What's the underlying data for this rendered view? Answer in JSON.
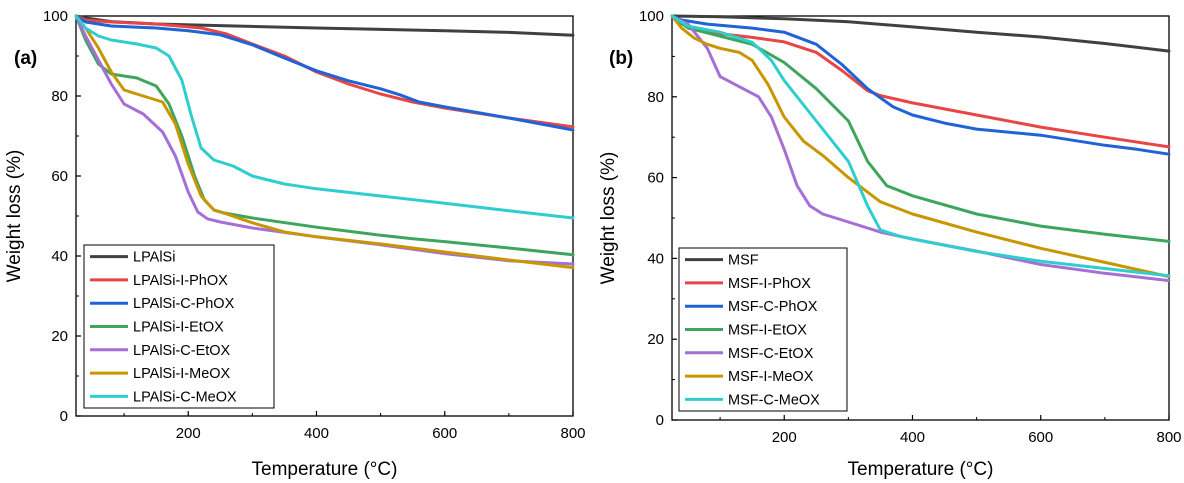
{
  "chart_data": [
    {
      "type": "line",
      "panel_label": "(a)",
      "xlabel": "Temperature (°C)",
      "ylabel": "Weight loss (%)",
      "xlim": [
        25,
        800
      ],
      "ylim": [
        0,
        100
      ],
      "xticks": [
        200,
        400,
        600,
        800
      ],
      "yticks": [
        0,
        20,
        40,
        60,
        80,
        100
      ],
      "grid": false,
      "legend_position": "bottom-left",
      "series": [
        {
          "name": "LPAlSi",
          "color": "#404040",
          "x": [
            25,
            40,
            80,
            150,
            250,
            400,
            600,
            700,
            800
          ],
          "y": [
            100,
            99.5,
            98.6,
            98.0,
            97.6,
            97.0,
            96.3,
            95.9,
            95.2
          ]
        },
        {
          "name": "LPAlSi-I-PhOX",
          "color": "#e84545",
          "x": [
            25,
            40,
            80,
            150,
            220,
            260,
            300,
            350,
            400,
            450,
            500,
            550,
            600,
            700,
            800
          ],
          "y": [
            100,
            99,
            98.5,
            98,
            97,
            95.5,
            93,
            90,
            86,
            83,
            80.5,
            78.5,
            77,
            74.5,
            72.3
          ]
        },
        {
          "name": "LPAlSi-C-PhOX",
          "color": "#1f63d6",
          "x": [
            25,
            40,
            80,
            150,
            200,
            250,
            300,
            350,
            400,
            450,
            500,
            530,
            560,
            600,
            700,
            800
          ],
          "y": [
            100,
            98.5,
            97.5,
            97,
            96.3,
            95.3,
            92.8,
            89.5,
            86.3,
            83.8,
            81.8,
            80.3,
            78.5,
            77.3,
            74.5,
            71.5
          ]
        },
        {
          "name": "LPAlSi-I-EtOX",
          "color": "#3ea55c",
          "x": [
            25,
            40,
            60,
            80,
            120,
            150,
            170,
            190,
            210,
            225,
            240,
            255,
            300,
            400,
            500,
            550,
            600,
            700,
            800
          ],
          "y": [
            100,
            94,
            88,
            85.5,
            84.5,
            82.5,
            78,
            70,
            60,
            54,
            51.5,
            50.8,
            49.5,
            47.2,
            45.2,
            44.3,
            43.6,
            42,
            40.3
          ]
        },
        {
          "name": "LPAlSi-C-EtOX",
          "color": "#a56fd6",
          "x": [
            25,
            40,
            60,
            80,
            100,
            130,
            160,
            180,
            200,
            215,
            230,
            250,
            300,
            400,
            500,
            600,
            700,
            800
          ],
          "y": [
            100,
            95,
            89,
            83,
            78,
            75.5,
            71,
            65,
            56,
            51,
            49.3,
            48.5,
            47,
            44.8,
            42.8,
            40.6,
            38.8,
            38
          ]
        },
        {
          "name": "LPAlSi-I-MeOX",
          "color": "#c79600",
          "x": [
            25,
            40,
            60,
            80,
            100,
            130,
            160,
            180,
            200,
            220,
            240,
            260,
            300,
            350,
            400,
            500,
            600,
            700,
            800
          ],
          "y": [
            100,
            97,
            92,
            86,
            81.5,
            80,
            78.5,
            73,
            63,
            55,
            51.5,
            50.5,
            48.3,
            46,
            44.8,
            43,
            41,
            39,
            37.1
          ]
        },
        {
          "name": "LPAlSi-C-MeOX",
          "color": "#2fcdcd",
          "x": [
            25,
            40,
            60,
            80,
            120,
            150,
            170,
            190,
            205,
            220,
            240,
            270,
            300,
            350,
            400,
            500,
            600,
            700,
            800
          ],
          "y": [
            100,
            97,
            95,
            94,
            93,
            92,
            90,
            84,
            75,
            67,
            64,
            62.5,
            60,
            58,
            56.8,
            55,
            53.2,
            51.3,
            49.5
          ]
        }
      ]
    },
    {
      "type": "line",
      "panel_label": "(b)",
      "xlabel": "Temperature (°C)",
      "ylabel": "Weight loss (%)",
      "xlim": [
        25,
        800
      ],
      "ylim": [
        0,
        100
      ],
      "xticks": [
        200,
        400,
        600,
        800
      ],
      "yticks": [
        0,
        20,
        40,
        60,
        80,
        100
      ],
      "grid": false,
      "legend_position": "bottom-left",
      "series": [
        {
          "name": "MSF",
          "color": "#404040",
          "x": [
            25,
            100,
            200,
            300,
            400,
            500,
            600,
            700,
            800
          ],
          "y": [
            100,
            99.8,
            99.3,
            98.6,
            97.3,
            96,
            94.8,
            93.2,
            91.3
          ]
        },
        {
          "name": "MSF-I-PhOX",
          "color": "#e84545",
          "x": [
            25,
            40,
            80,
            150,
            200,
            250,
            290,
            310,
            330,
            350,
            400,
            500,
            600,
            700,
            800
          ],
          "y": [
            100,
            98,
            96,
            94.7,
            93.6,
            91,
            86.5,
            84,
            81.5,
            80.3,
            78.5,
            75.5,
            72.5,
            70,
            67.6
          ]
        },
        {
          "name": "MSF-C-PhOX",
          "color": "#1f63d6",
          "x": [
            25,
            40,
            80,
            150,
            200,
            250,
            290,
            330,
            370,
            400,
            450,
            500,
            600,
            700,
            750,
            800
          ],
          "y": [
            100,
            99,
            98,
            97,
            96,
            93,
            88,
            82,
            77.5,
            75.5,
            73.5,
            72,
            70.5,
            68,
            67,
            65.8
          ]
        },
        {
          "name": "MSF-I-EtOX",
          "color": "#3ea55c",
          "x": [
            25,
            50,
            100,
            150,
            200,
            250,
            300,
            330,
            360,
            400,
            500,
            600,
            700,
            800
          ],
          "y": [
            100,
            97,
            95,
            93,
            88.5,
            82,
            74,
            64,
            58,
            55.5,
            51,
            48,
            46,
            44.2
          ]
        },
        {
          "name": "MSF-C-EtOX",
          "color": "#a56fd6",
          "x": [
            25,
            50,
            80,
            100,
            130,
            160,
            180,
            200,
            220,
            240,
            260,
            300,
            350,
            400,
            500,
            600,
            700,
            800
          ],
          "y": [
            100,
            98,
            92,
            85,
            82.5,
            80,
            75,
            67,
            58,
            53,
            51,
            49,
            46.5,
            44.8,
            41.8,
            38.5,
            36.3,
            34.5
          ]
        },
        {
          "name": "MSF-I-MeOX",
          "color": "#c79600",
          "x": [
            25,
            40,
            60,
            80,
            100,
            130,
            150,
            175,
            200,
            230,
            260,
            300,
            350,
            400,
            500,
            600,
            700,
            800
          ],
          "y": [
            100,
            97,
            94.5,
            93,
            92,
            91,
            89,
            83,
            75,
            69,
            65.5,
            60,
            54,
            51,
            46.5,
            42.5,
            39,
            35.5
          ]
        },
        {
          "name": "MSF-C-MeOX",
          "color": "#2fcdcd",
          "x": [
            25,
            50,
            100,
            150,
            180,
            200,
            250,
            300,
            330,
            350,
            380,
            400,
            500,
            600,
            700,
            800
          ],
          "y": [
            100,
            97.5,
            96,
            93.5,
            89,
            84,
            74,
            64,
            53,
            47,
            45.5,
            44.8,
            41.7,
            39.3,
            37.5,
            35.7
          ]
        }
      ]
    }
  ]
}
